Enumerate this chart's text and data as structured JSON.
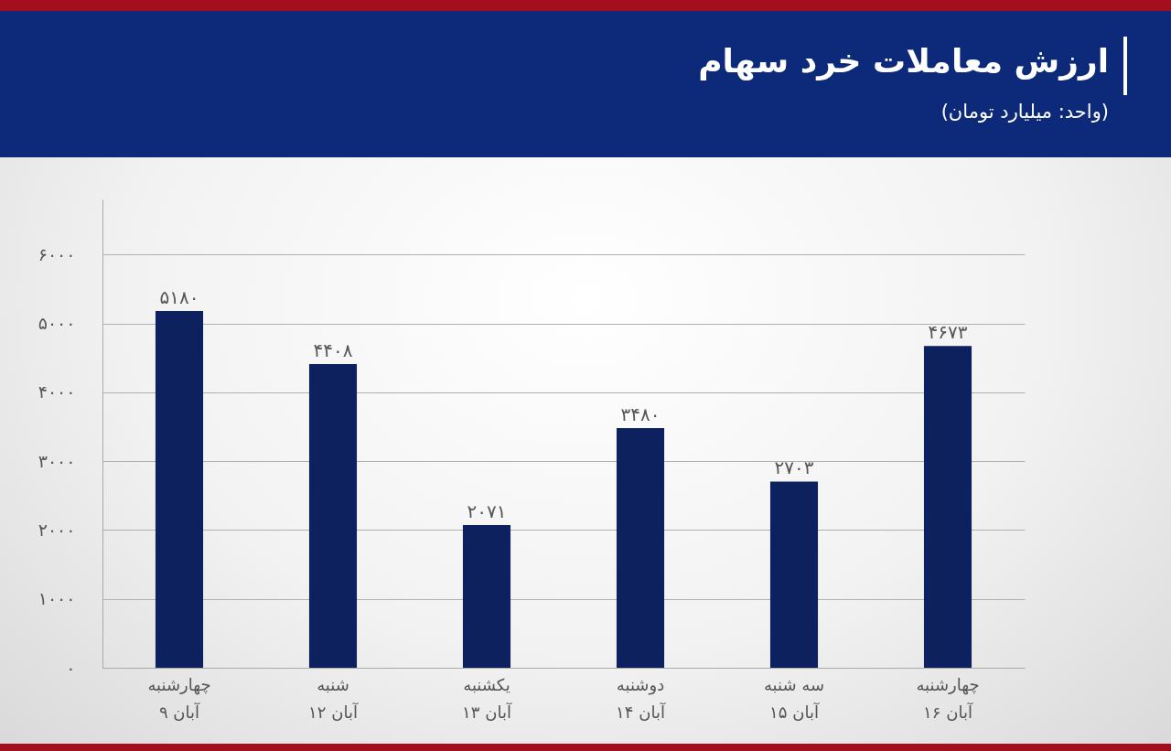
{
  "chart_data": {
    "type": "bar",
    "title": "ارزش معاملات خرد سهام",
    "subtitle": "(واحد: میلیارد تومان)",
    "categories": [
      "چهارشنبه\n۹ آبان",
      "شنبه\n۱۲ آبان",
      "یکشنبه\n۱۳ آبان",
      "دوشنبه\n۱۴ آبان",
      "سه شنبه\n۱۵ آبان",
      "چهارشنبه\n۱۶ آبان"
    ],
    "values": [
      5180,
      4408,
      2071,
      3480,
      2703,
      4673
    ],
    "value_labels": [
      "۵۱۸۰",
      "۴۴۰۸",
      "۲۰۷۱",
      "۳۴۸۰",
      "۲۷۰۳",
      "۴۶۷۳"
    ],
    "color": "#0c215e",
    "ylim": [
      0,
      6800
    ],
    "yticks": [
      {
        "value": 0,
        "label": "۰"
      },
      {
        "value": 1000,
        "label": "۱۰۰۰"
      },
      {
        "value": 2000,
        "label": "۲۰۰۰"
      },
      {
        "value": 3000,
        "label": "۳۰۰۰"
      },
      {
        "value": 4000,
        "label": "۴۰۰۰"
      },
      {
        "value": 5000,
        "label": "۵۰۰۰"
      },
      {
        "value": 6000,
        "label": "۶۰۰۰"
      }
    ],
    "grid": "y"
  }
}
